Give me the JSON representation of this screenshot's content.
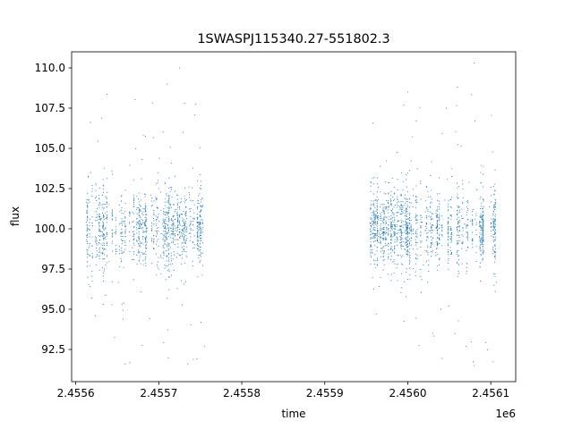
{
  "chart_data": {
    "type": "scatter",
    "title": "1SWASPJ115340.27-551802.3",
    "xlabel": "time",
    "ylabel": "flux",
    "x_offset_label": "1e6",
    "xlim": [
      2455595,
      2456130
    ],
    "ylim": [
      90.5,
      111.0
    ],
    "x_ticks": [
      2455600,
      2455700,
      2455800,
      2455900,
      2456000,
      2456100
    ],
    "x_tick_labels": [
      "2.4556",
      "2.4557",
      "2.4558",
      "2.4559",
      "2.4560",
      "2.4561"
    ],
    "y_ticks": [
      92.5,
      95.0,
      97.5,
      100.0,
      102.5,
      105.0,
      107.5,
      110.0
    ],
    "y_tick_labels": [
      "92.5",
      "95.0",
      "97.5",
      "100.0",
      "102.5",
      "105.0",
      "107.5",
      "110.0"
    ],
    "grid": false,
    "series_color": "#1f77b4",
    "segments": [
      {
        "x_start": 2455613,
        "x_end": 2455755,
        "center": 100.0,
        "spread": 2.6
      },
      {
        "x_start": 2455955,
        "x_end": 2456107,
        "center": 100.0,
        "spread": 2.8
      }
    ],
    "sample_points": [
      [
        2455615,
        100.0
      ],
      [
        2455620,
        102.5
      ],
      [
        2455633,
        95.3
      ],
      [
        2455640,
        101.5
      ],
      [
        2455655,
        98.0
      ],
      [
        2455680,
        104.3
      ],
      [
        2455700,
        102.5
      ],
      [
        2455700,
        97.5
      ],
      [
        2455710,
        109.0
      ],
      [
        2455725,
        110.0
      ],
      [
        2455735,
        91.6
      ],
      [
        2455750,
        100.0
      ],
      [
        2455960,
        97.8
      ],
      [
        2456000,
        108.5
      ],
      [
        2456030,
        93.5
      ],
      [
        2456040,
        95.0
      ],
      [
        2456060,
        108.8
      ],
      [
        2456070,
        92.7
      ],
      [
        2456080,
        110.3
      ],
      [
        2456080,
        91.5
      ],
      [
        2456090,
        98.0
      ],
      [
        2456105,
        101.5
      ]
    ]
  }
}
